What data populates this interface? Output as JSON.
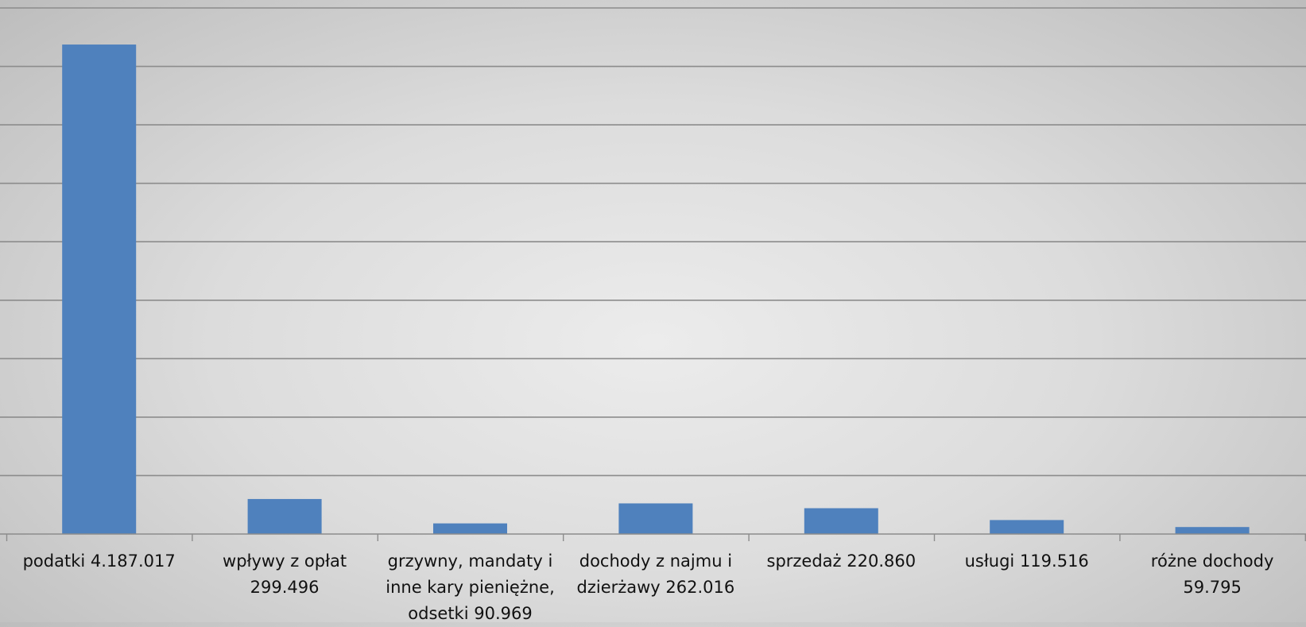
{
  "chart_data": {
    "type": "bar",
    "title": "",
    "xlabel": "",
    "ylabel": "",
    "categories": [
      "podatki 4.187.017",
      "wpływy z opłat 299.496",
      "grzywny, mandaty i inne kary pieniężne, odsetki 90.969",
      "dochody z najmu i dzierżawy 262.016",
      "sprzedaż 220.860",
      "usługi 119.516",
      "różne dochody 59.795"
    ],
    "category_lines": [
      [
        "podatki 4.187.017"
      ],
      [
        "wpływy z opłat",
        "299.496"
      ],
      [
        "grzywny, mandaty i",
        "inne kary pieniężne,",
        "odsetki 90.969"
      ],
      [
        "dochody z najmu i",
        "dzierżawy 262.016"
      ],
      [
        "sprzedaż 220.860"
      ],
      [
        "usługi 119.516"
      ],
      [
        "różne dochody",
        "59.795"
      ]
    ],
    "values": [
      4187017,
      299496,
      90969,
      262016,
      220860,
      119516,
      59795
    ],
    "ylim": [
      0,
      4500000
    ],
    "y_gridline_step": 500000,
    "grid": true,
    "y_tick_labels_visible": false,
    "legend": "none",
    "bar_color": "#4f81bd",
    "gridline_color": "#8c8c8c",
    "axis_color": "#8c8c8c"
  }
}
